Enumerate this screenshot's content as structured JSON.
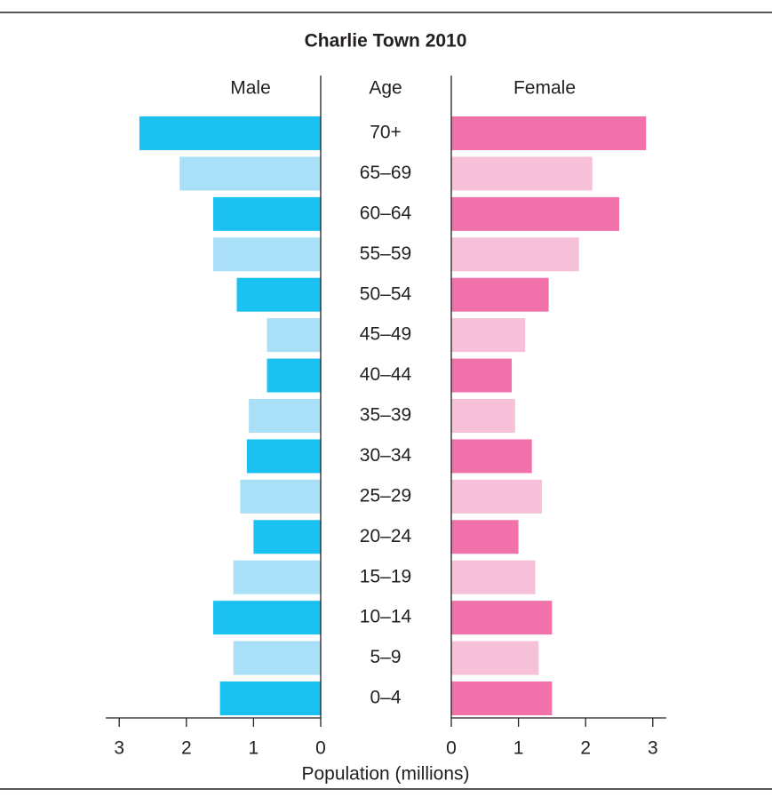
{
  "chart_data": {
    "type": "pyramid",
    "title": "Charlie Town 2010",
    "category_label": "Age",
    "xlabel": "Population (millions)",
    "categories": [
      "70+",
      "65–69",
      "60–64",
      "55–59",
      "50–54",
      "45–49",
      "40–44",
      "35–39",
      "30–34",
      "25–29",
      "20–24",
      "15–19",
      "10–14",
      "5–9",
      "0–4"
    ],
    "series": [
      {
        "name": "Male",
        "colors": [
          "#1ac1f1",
          "#aadff8"
        ],
        "values": [
          2.7,
          2.1,
          1.6,
          1.6,
          1.25,
          0.8,
          0.8,
          1.07,
          1.1,
          1.2,
          1.0,
          1.3,
          1.6,
          1.3,
          1.5
        ]
      },
      {
        "name": "Female",
        "colors": [
          "#f172aa",
          "#f6c0d9"
        ],
        "values": [
          2.9,
          2.1,
          2.5,
          1.9,
          1.45,
          1.1,
          0.9,
          0.95,
          1.2,
          1.35,
          1.0,
          1.25,
          1.5,
          1.3,
          1.5
        ]
      }
    ],
    "xlim": [
      0,
      3.2
    ],
    "xticks": [
      0,
      1,
      2,
      3
    ]
  }
}
